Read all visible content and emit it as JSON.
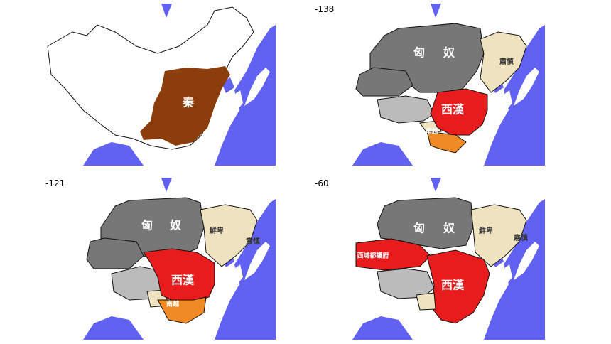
{
  "panels": [
    {
      "regions": [
        "秦"
      ]
    },
    {
      "label": "-138",
      "regions": [
        "匈",
        "奴",
        "西漢",
        "南越",
        "肅慎"
      ]
    },
    {
      "label": "-121",
      "regions": [
        "匈",
        "奴",
        "西漢",
        "南越",
        "鮮卑",
        "肅慎"
      ]
    },
    {
      "label": "-60",
      "regions": [
        "匈",
        "奴",
        "西漢",
        "西域都護府",
        "鮮卑",
        "肅慎"
      ]
    }
  ]
}
